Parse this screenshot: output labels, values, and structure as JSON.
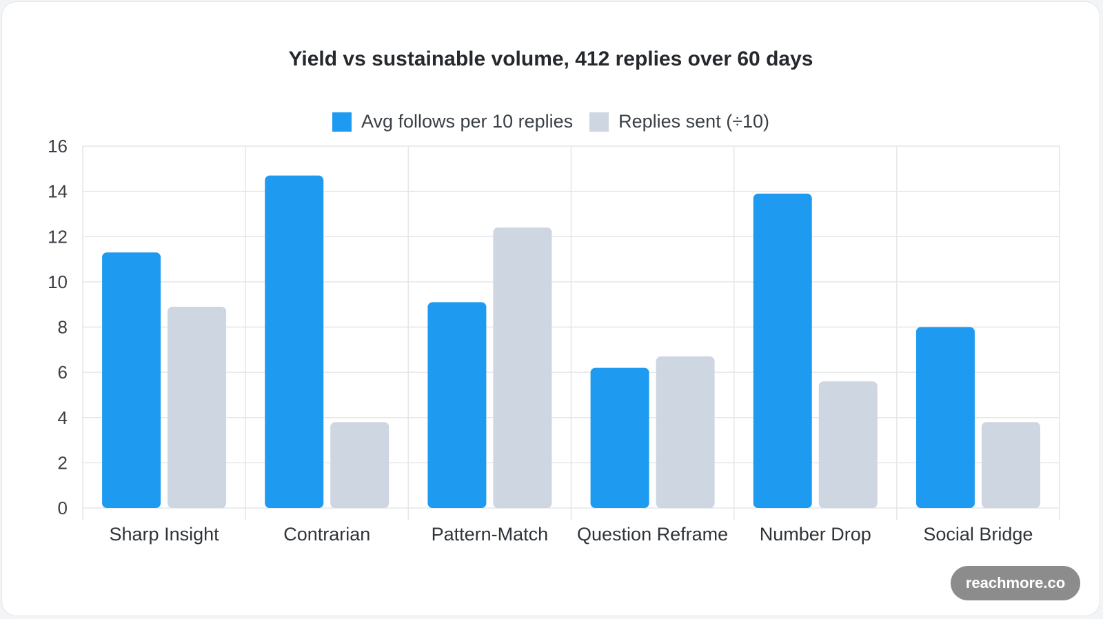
{
  "chart_data": {
    "type": "bar",
    "title": "Yield vs sustainable volume, 412 replies over 60 days",
    "xlabel": "",
    "ylabel": "",
    "categories": [
      "Sharp Insight",
      "Contrarian",
      "Pattern-Match",
      "Question Reframe",
      "Number Drop",
      "Social Bridge"
    ],
    "series": [
      {
        "name": "Avg follows per 10 replies",
        "color": "#1e9bf0",
        "values": [
          11.3,
          14.7,
          9.1,
          6.2,
          13.9,
          8.0
        ]
      },
      {
        "name": "Replies sent (÷10)",
        "color": "#cdd6e1",
        "values": [
          8.9,
          3.8,
          12.4,
          6.7,
          5.6,
          3.8
        ]
      }
    ],
    "ylim": [
      0,
      16
    ],
    "yticks": [
      "0",
      "2",
      "4",
      "6",
      "8",
      "10",
      "12",
      "14",
      "16"
    ],
    "grid": true,
    "legend_position": "top-center"
  },
  "branding": {
    "badge_text": "reachmore.co"
  }
}
